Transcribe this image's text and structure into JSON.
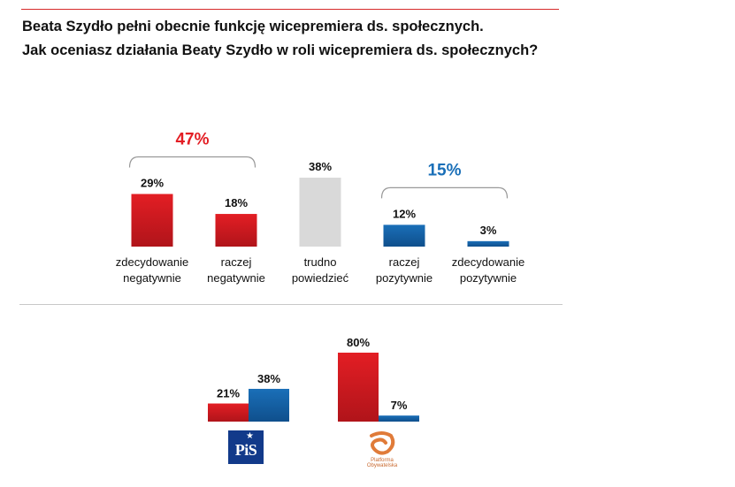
{
  "title": {
    "line1": "Beata Szydło pełni obecnie funkcję wicepremiera ds. społecznych.",
    "line2": "Jak oceniasz działania Beaty Szydło w roli wicepremiera ds. społecznych?"
  },
  "colors": {
    "negative": "#e31e24",
    "negative_dark": "#b0141a",
    "neutral": "#d9d9d9",
    "positive": "#1a6fb8",
    "positive_dark": "#0f4f8c",
    "group_negative_label": "#e31e24",
    "group_positive_label": "#1a6fb8"
  },
  "chart_data": [
    {
      "type": "bar",
      "categories": [
        [
          "zdecydowanie",
          "negatywnie"
        ],
        [
          "raczej",
          "negatywnie"
        ],
        [
          "trudno",
          "powiedzieć"
        ],
        [
          "raczej",
          "pozytywnie"
        ],
        [
          "zdecydowanie",
          "pozytywnie"
        ]
      ],
      "values": [
        29,
        18,
        38,
        12,
        3
      ],
      "value_labels": [
        "29%",
        "18%",
        "38%",
        "12%",
        "3%"
      ],
      "bar_colors": [
        "negative",
        "negative",
        "neutral",
        "positive",
        "positive"
      ],
      "groups": [
        {
          "label": "47%",
          "color": "group_negative_label",
          "from": 0,
          "to": 1
        },
        {
          "label": "15%",
          "color": "group_positive_label",
          "from": 3,
          "to": 4
        }
      ],
      "ylim": [
        0,
        38
      ]
    },
    {
      "type": "bar",
      "categories": [
        "PiS",
        "Platforma Obywatelska"
      ],
      "series": [
        {
          "color": "negative",
          "values": [
            21,
            80
          ],
          "value_labels": [
            "21%",
            "80%"
          ]
        },
        {
          "color": "positive",
          "values": [
            38,
            7
          ],
          "value_labels": [
            "38%",
            "7%"
          ]
        }
      ],
      "ylim": [
        0,
        80
      ]
    }
  ],
  "logos": {
    "pis": "PiS",
    "po_line1": "Platforma",
    "po_line2": "Obywatelska"
  }
}
